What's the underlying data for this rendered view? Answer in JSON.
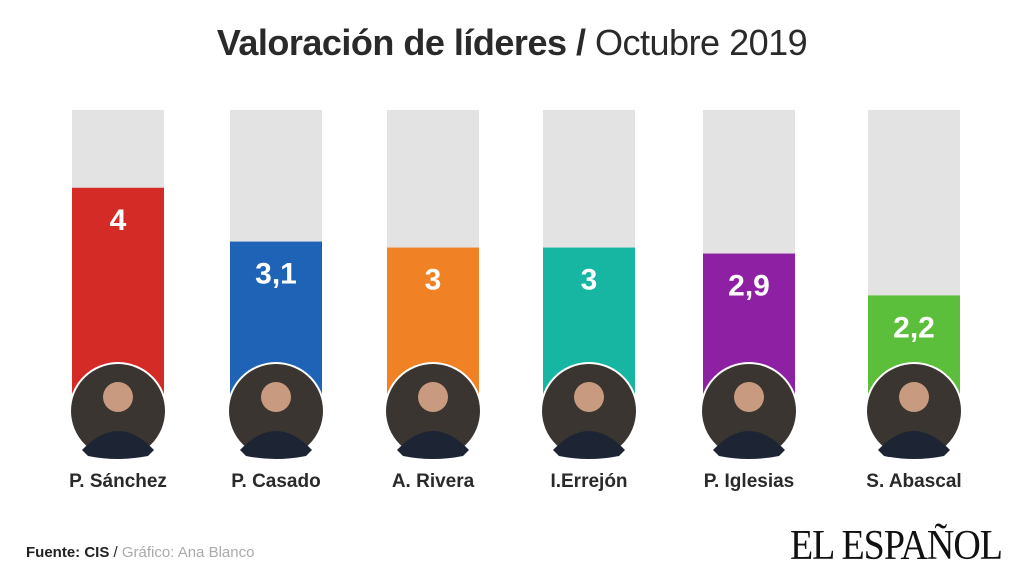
{
  "chart_data": {
    "type": "bar",
    "title": "Valoración de líderes",
    "subtitle": "Octubre 2019",
    "categories": [
      "P. Sánchez",
      "P. Casado",
      "A. Rivera",
      "I.Errejón",
      "P. Iglesias",
      "S. Abascal"
    ],
    "values": [
      4,
      3.1,
      3,
      3,
      2.9,
      2.2
    ],
    "value_labels": [
      "4",
      "3,1",
      "3",
      "3",
      "2,9",
      "2,2"
    ],
    "colors": [
      "#d42b27",
      "#1f63b6",
      "#f08124",
      "#17b6a3",
      "#8e21a3",
      "#5cbf3b"
    ],
    "background_color": "#e3e3e3",
    "ylim": [
      0,
      5.3
    ],
    "xlabel": "",
    "ylabel": "",
    "grid": false
  },
  "footer": {
    "source": "Fuente: CIS",
    "separator": " / ",
    "credit": "Gráfico: Ana Blanco"
  },
  "logo": "EL ESPAÑOL"
}
